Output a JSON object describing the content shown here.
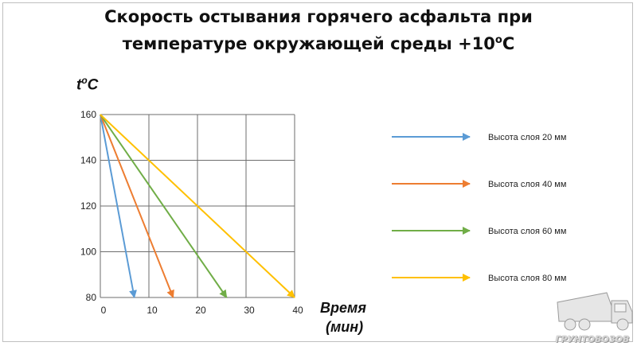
{
  "page": {
    "title_line1": "Скорость остывания горячего асфальта при",
    "title_line2_prefix": "температуре окружающей среды +10",
    "title_line2_sup": "о",
    "title_line2_suffix": "С",
    "ylabel_main": "t",
    "ylabel_sup": "о",
    "ylabel_suffix": "С",
    "xlabel_line1": "Время",
    "xlabel_line2": "(мин)",
    "watermark_text": "ГРУНТОВОЗОВ"
  },
  "chart_data": {
    "type": "line",
    "title": "Скорость остывания горячего асфальта при температуре окружающей среды +10оС",
    "xlabel": "Время (мин)",
    "ylabel": "tоС",
    "xlim": [
      0,
      40
    ],
    "ylim": [
      80,
      160
    ],
    "xticks": [
      0,
      10,
      20,
      30,
      40
    ],
    "yticks": [
      80,
      100,
      120,
      140,
      160
    ],
    "grid": true,
    "legend_position": "right",
    "series": [
      {
        "name": "Высота слоя 20 мм",
        "color": "#5b9bd5",
        "x": [
          0,
          7
        ],
        "y": [
          160,
          80
        ]
      },
      {
        "name": "Высота слоя 40 мм",
        "color": "#ed7d31",
        "x": [
          0,
          15
        ],
        "y": [
          160,
          80
        ]
      },
      {
        "name": "Высота слоя 60 мм",
        "color": "#70ad47",
        "x": [
          0,
          26
        ],
        "y": [
          160,
          80
        ]
      },
      {
        "name": "Высота слоя 80 мм",
        "color": "#ffc000",
        "x": [
          0,
          40
        ],
        "y": [
          160,
          80
        ]
      }
    ]
  }
}
